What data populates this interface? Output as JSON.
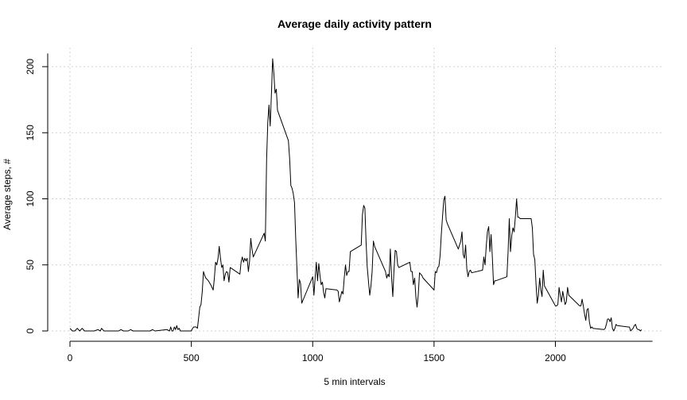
{
  "chart_data": {
    "type": "line",
    "title": "Average daily activity pattern",
    "xlabel": "5 min intervals",
    "ylabel": "Average steps, #",
    "xlim": [
      0,
      2400
    ],
    "ylim": [
      0,
      210
    ],
    "grid": true,
    "x_ticks": [
      "0",
      "500",
      "1000",
      "1500",
      "2000"
    ],
    "y_ticks": [
      "0",
      "50",
      "100",
      "150",
      "200"
    ],
    "series": [
      {
        "color": "#000000",
        "points": [
          [
            0,
            2
          ],
          [
            10,
            0
          ],
          [
            20,
            0
          ],
          [
            30,
            2
          ],
          [
            40,
            0
          ],
          [
            50,
            2
          ],
          [
            60,
            0
          ],
          [
            70,
            0
          ],
          [
            100,
            0
          ],
          [
            115,
            1
          ],
          [
            125,
            0
          ],
          [
            130,
            2
          ],
          [
            140,
            0
          ],
          [
            200,
            0
          ],
          [
            210,
            1
          ],
          [
            220,
            0
          ],
          [
            240,
            0
          ],
          [
            250,
            1
          ],
          [
            260,
            0
          ],
          [
            330,
            0
          ],
          [
            340,
            1
          ],
          [
            350,
            0
          ],
          [
            400,
            1
          ],
          [
            410,
            0
          ],
          [
            415,
            3
          ],
          [
            420,
            0
          ],
          [
            425,
            0
          ],
          [
            430,
            3
          ],
          [
            435,
            1
          ],
          [
            440,
            4
          ],
          [
            445,
            1
          ],
          [
            450,
            2
          ],
          [
            455,
            0
          ],
          [
            500,
            0
          ],
          [
            505,
            2
          ],
          [
            510,
            3
          ],
          [
            520,
            3
          ],
          [
            525,
            2
          ],
          [
            530,
            10
          ],
          [
            535,
            18
          ],
          [
            540,
            20
          ],
          [
            545,
            30
          ],
          [
            550,
            45
          ],
          [
            555,
            42
          ],
          [
            560,
            40
          ],
          [
            570,
            38
          ],
          [
            580,
            35
          ],
          [
            585,
            33
          ],
          [
            590,
            31
          ],
          [
            595,
            40
          ],
          [
            600,
            52
          ],
          [
            605,
            50
          ],
          [
            610,
            55
          ],
          [
            615,
            64
          ],
          [
            620,
            55
          ],
          [
            625,
            48
          ],
          [
            630,
            50
          ],
          [
            635,
            38
          ],
          [
            640,
            43
          ],
          [
            645,
            45
          ],
          [
            650,
            44
          ],
          [
            655,
            37
          ],
          [
            660,
            48
          ],
          [
            700,
            43
          ],
          [
            705,
            52
          ],
          [
            710,
            56
          ],
          [
            715,
            52
          ],
          [
            720,
            55
          ],
          [
            725,
            53
          ],
          [
            730,
            55
          ],
          [
            735,
            45
          ],
          [
            740,
            53
          ],
          [
            745,
            70
          ],
          [
            750,
            62
          ],
          [
            755,
            56
          ],
          [
            800,
            74
          ],
          [
            805,
            68
          ],
          [
            810,
            130
          ],
          [
            815,
            158
          ],
          [
            820,
            171
          ],
          [
            825,
            155
          ],
          [
            830,
            180
          ],
          [
            835,
            206
          ],
          [
            840,
            195
          ],
          [
            845,
            180
          ],
          [
            850,
            183
          ],
          [
            855,
            167
          ],
          [
            900,
            144
          ],
          [
            905,
            130
          ],
          [
            910,
            110
          ],
          [
            915,
            108
          ],
          [
            920,
            104
          ],
          [
            925,
            97
          ],
          [
            930,
            70
          ],
          [
            935,
            48
          ],
          [
            940,
            25
          ],
          [
            945,
            39
          ],
          [
            950,
            36
          ],
          [
            955,
            21
          ],
          [
            1000,
            41
          ],
          [
            1005,
            27
          ],
          [
            1010,
            40
          ],
          [
            1015,
            52
          ],
          [
            1020,
            38
          ],
          [
            1025,
            51
          ],
          [
            1030,
            42
          ],
          [
            1035,
            35
          ],
          [
            1040,
            37
          ],
          [
            1045,
            29
          ],
          [
            1050,
            25
          ],
          [
            1055,
            32
          ],
          [
            1100,
            31
          ],
          [
            1105,
            30
          ],
          [
            1110,
            22
          ],
          [
            1115,
            26
          ],
          [
            1120,
            30
          ],
          [
            1125,
            28
          ],
          [
            1130,
            40
          ],
          [
            1135,
            50
          ],
          [
            1140,
            42
          ],
          [
            1145,
            45
          ],
          [
            1150,
            45
          ],
          [
            1155,
            60
          ],
          [
            1200,
            65
          ],
          [
            1205,
            88
          ],
          [
            1210,
            95
          ],
          [
            1215,
            93
          ],
          [
            1220,
            67
          ],
          [
            1225,
            48
          ],
          [
            1230,
            37
          ],
          [
            1235,
            27
          ],
          [
            1240,
            34
          ],
          [
            1245,
            45
          ],
          [
            1250,
            68
          ],
          [
            1255,
            64
          ],
          [
            1300,
            45
          ],
          [
            1305,
            40
          ],
          [
            1310,
            43
          ],
          [
            1315,
            41
          ],
          [
            1320,
            62
          ],
          [
            1325,
            40
          ],
          [
            1330,
            26
          ],
          [
            1335,
            46
          ],
          [
            1340,
            61
          ],
          [
            1345,
            60
          ],
          [
            1350,
            50
          ],
          [
            1355,
            48
          ],
          [
            1400,
            52
          ],
          [
            1405,
            45
          ],
          [
            1410,
            45
          ],
          [
            1415,
            35
          ],
          [
            1420,
            40
          ],
          [
            1425,
            26
          ],
          [
            1430,
            18
          ],
          [
            1435,
            27
          ],
          [
            1440,
            44
          ],
          [
            1445,
            43
          ],
          [
            1450,
            42
          ],
          [
            1455,
            40
          ],
          [
            1500,
            31
          ],
          [
            1505,
            45
          ],
          [
            1510,
            44
          ],
          [
            1515,
            48
          ],
          [
            1520,
            49
          ],
          [
            1525,
            57
          ],
          [
            1530,
            73
          ],
          [
            1535,
            87
          ],
          [
            1540,
            99
          ],
          [
            1545,
            102
          ],
          [
            1550,
            84
          ],
          [
            1555,
            81
          ],
          [
            1600,
            62
          ],
          [
            1605,
            65
          ],
          [
            1610,
            68
          ],
          [
            1615,
            75
          ],
          [
            1620,
            58
          ],
          [
            1625,
            55
          ],
          [
            1630,
            65
          ],
          [
            1635,
            47
          ],
          [
            1640,
            41
          ],
          [
            1645,
            45
          ],
          [
            1650,
            46
          ],
          [
            1655,
            44
          ],
          [
            1700,
            46
          ],
          [
            1705,
            56
          ],
          [
            1710,
            50
          ],
          [
            1715,
            64
          ],
          [
            1720,
            75
          ],
          [
            1725,
            79
          ],
          [
            1730,
            60
          ],
          [
            1735,
            73
          ],
          [
            1740,
            57
          ],
          [
            1745,
            35
          ],
          [
            1750,
            38
          ],
          [
            1755,
            38
          ],
          [
            1800,
            41
          ],
          [
            1805,
            60
          ],
          [
            1810,
            85
          ],
          [
            1815,
            60
          ],
          [
            1820,
            72
          ],
          [
            1825,
            78
          ],
          [
            1830,
            75
          ],
          [
            1835,
            86
          ],
          [
            1840,
            100
          ],
          [
            1845,
            86
          ],
          [
            1850,
            86
          ],
          [
            1855,
            85
          ],
          [
            1900,
            85
          ],
          [
            1905,
            78
          ],
          [
            1910,
            58
          ],
          [
            1915,
            54
          ],
          [
            1920,
            36
          ],
          [
            1925,
            21
          ],
          [
            1930,
            27
          ],
          [
            1935,
            40
          ],
          [
            1940,
            31
          ],
          [
            1945,
            26
          ],
          [
            1950,
            46
          ],
          [
            1955,
            34
          ],
          [
            2000,
            19
          ],
          [
            2005,
            19
          ],
          [
            2010,
            20
          ],
          [
            2015,
            33
          ],
          [
            2020,
            27
          ],
          [
            2025,
            22
          ],
          [
            2030,
            30
          ],
          [
            2035,
            25
          ],
          [
            2040,
            20
          ],
          [
            2045,
            22
          ],
          [
            2050,
            33
          ],
          [
            2055,
            27
          ],
          [
            2100,
            19
          ],
          [
            2105,
            19
          ],
          [
            2110,
            24
          ],
          [
            2115,
            19
          ],
          [
            2120,
            13
          ],
          [
            2125,
            8
          ],
          [
            2130,
            16
          ],
          [
            2135,
            17
          ],
          [
            2140,
            7
          ],
          [
            2145,
            2
          ],
          [
            2150,
            3
          ],
          [
            2155,
            2
          ],
          [
            2200,
            1
          ],
          [
            2205,
            2
          ],
          [
            2210,
            5
          ],
          [
            2215,
            9
          ],
          [
            2220,
            9
          ],
          [
            2225,
            7
          ],
          [
            2230,
            10
          ],
          [
            2235,
            2
          ],
          [
            2240,
            0
          ],
          [
            2245,
            2
          ],
          [
            2250,
            5
          ],
          [
            2255,
            4
          ],
          [
            2300,
            3
          ],
          [
            2305,
            3
          ],
          [
            2310,
            0
          ],
          [
            2315,
            1
          ],
          [
            2320,
            2
          ],
          [
            2325,
            4
          ],
          [
            2330,
            5
          ],
          [
            2335,
            2
          ],
          [
            2340,
            1
          ],
          [
            2345,
            1
          ],
          [
            2350,
            0
          ],
          [
            2355,
            1
          ]
        ]
      }
    ]
  }
}
